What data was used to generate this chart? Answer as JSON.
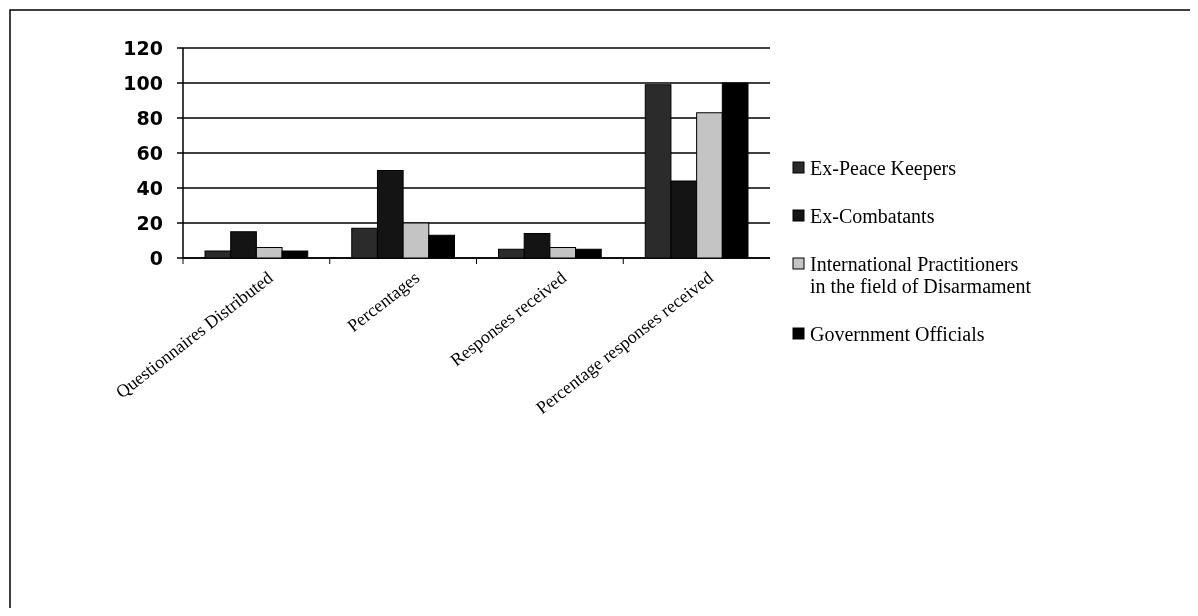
{
  "chart_data": {
    "type": "bar",
    "categories": [
      "Questionnaires Distributed",
      "Percentages",
      "Responses received",
      "Percentage responses received"
    ],
    "series": [
      {
        "name": "Ex-Peace Keepers",
        "color": "#2b2b2b",
        "values": [
          4,
          17,
          5,
          99
        ]
      },
      {
        "name": "Ex-Combatants",
        "color": "#141414",
        "values": [
          15,
          50,
          14,
          44
        ]
      },
      {
        "name": "International Practitioners in the field of Disarmament",
        "color": "#c4c4c4",
        "values": [
          6,
          20,
          6,
          83
        ]
      },
      {
        "name": "Government Officials",
        "color": "#000000",
        "values": [
          4,
          13,
          5,
          100
        ]
      }
    ],
    "ylim": [
      0,
      120
    ],
    "yticks": [
      0,
      20,
      40,
      60,
      80,
      100,
      120
    ],
    "grid": "y",
    "legend": "right"
  }
}
